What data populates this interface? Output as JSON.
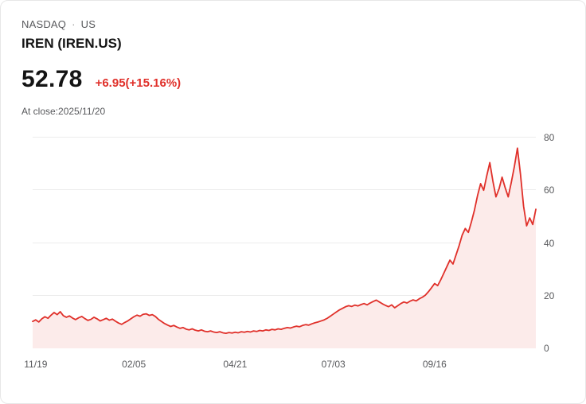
{
  "header": {
    "exchange": "NASDAQ",
    "separator": "·",
    "region": "US",
    "symbol_title": "IREN (IREN.US)",
    "price": "52.78",
    "change": "+6.95(+15.16%)",
    "close_info": "At close:2025/11/20"
  },
  "colors": {
    "accent_red": "#e0302a",
    "fill_pink": "#fcebea",
    "grid": "#ececec",
    "muted_text": "#58595c",
    "dark_text": "#141414"
  },
  "chart_data": {
    "type": "area",
    "series_name": "IREN.US",
    "x_tick_labels": [
      "11/19",
      "02/05",
      "04/21",
      "07/03",
      "09/16"
    ],
    "x_tick_indices": [
      1,
      33,
      66,
      98,
      131
    ],
    "y_ticks": [
      0,
      20,
      40,
      60,
      80
    ],
    "ylim": [
      0,
      80
    ],
    "grid": true,
    "legend": false,
    "line_color": "#e0302a",
    "fill_color": "#fcebea",
    "values": [
      10.2,
      10.8,
      10.0,
      11.2,
      12.0,
      11.4,
      12.6,
      13.6,
      12.8,
      13.9,
      12.4,
      11.8,
      12.3,
      11.5,
      10.9,
      11.6,
      12.1,
      11.3,
      10.6,
      11.0,
      11.8,
      11.2,
      10.4,
      10.9,
      11.4,
      10.7,
      11.1,
      10.3,
      9.6,
      9.1,
      9.8,
      10.4,
      11.2,
      12.0,
      12.6,
      12.2,
      12.9,
      13.1,
      12.5,
      12.8,
      12.1,
      11.0,
      10.2,
      9.4,
      8.8,
      8.3,
      8.7,
      8.1,
      7.6,
      7.9,
      7.3,
      7.0,
      7.4,
      6.9,
      6.6,
      7.0,
      6.5,
      6.3,
      6.6,
      6.2,
      6.0,
      6.3,
      5.9,
      5.7,
      6.0,
      5.8,
      6.1,
      5.9,
      6.3,
      6.1,
      6.4,
      6.2,
      6.6,
      6.4,
      6.8,
      6.6,
      7.0,
      6.8,
      7.2,
      7.0,
      7.4,
      7.2,
      7.6,
      7.9,
      7.7,
      8.1,
      8.4,
      8.2,
      8.7,
      9.0,
      8.8,
      9.3,
      9.7,
      10.0,
      10.4,
      10.8,
      11.4,
      12.2,
      13.0,
      13.8,
      14.6,
      15.2,
      15.8,
      16.2,
      15.9,
      16.4,
      16.1,
      16.6,
      17.0,
      16.5,
      17.2,
      17.8,
      18.3,
      17.6,
      16.9,
      16.3,
      15.8,
      16.5,
      15.4,
      16.2,
      17.0,
      17.6,
      17.2,
      17.9,
      18.4,
      18.0,
      18.8,
      19.4,
      20.2,
      21.5,
      23.0,
      24.6,
      23.8,
      26.0,
      28.5,
      31.0,
      33.5,
      32.0,
      35.5,
      39.0,
      43.0,
      45.5,
      44.0,
      48.0,
      52.5,
      58.0,
      62.5,
      60.0,
      65.5,
      70.5,
      63.5,
      57.5,
      60.5,
      65.0,
      61.0,
      57.5,
      63.0,
      69.0,
      76.0,
      66.0,
      54.0,
      46.5,
      49.5,
      47.0,
      52.78
    ]
  }
}
